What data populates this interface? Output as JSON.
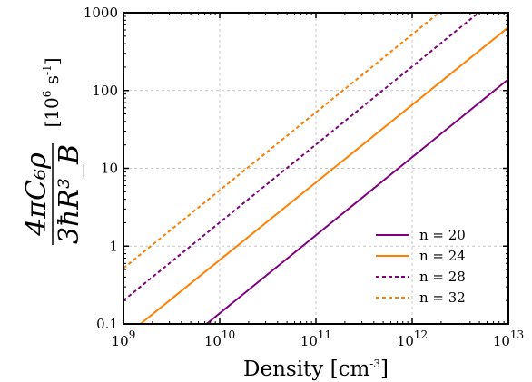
{
  "chart_data": {
    "type": "line",
    "xlabel": "Density [cm",
    "xlabel_sup": "-3",
    "xlabel_close": "]",
    "ylabel_numerator": "4πC₆ρ",
    "ylabel_denominator": "3ħR³_B",
    "ylabel_unit": "[10",
    "ylabel_unit_sup1": "6",
    "ylabel_unit_s": " s",
    "ylabel_unit_sup2": "-1",
    "ylabel_unit_close": "]",
    "xscale": "log",
    "yscale": "log",
    "xlim": [
      1000000000.0,
      10000000000000.0
    ],
    "ylim": [
      0.1,
      1000
    ],
    "grid": true,
    "legend_position": "lower-right",
    "x_ticks": [
      {
        "value": 1000000000.0,
        "base": "10",
        "exp": "9"
      },
      {
        "value": 10000000000.0,
        "base": "10",
        "exp": "10"
      },
      {
        "value": 100000000000.0,
        "base": "10",
        "exp": "11"
      },
      {
        "value": 1000000000000.0,
        "base": "10",
        "exp": "12"
      },
      {
        "value": 10000000000000.0,
        "base": "10",
        "exp": "13"
      }
    ],
    "y_ticks": [
      {
        "value": 0.1,
        "label": "0.1"
      },
      {
        "value": 1,
        "label": "1"
      },
      {
        "value": 10,
        "label": "10"
      },
      {
        "value": 100,
        "label": "100"
      },
      {
        "value": 1000,
        "label": "1000"
      }
    ],
    "series": [
      {
        "name": "n = 20",
        "color": "#800080",
        "dash": "solid",
        "x": [
          7300000000.0,
          10000000000000.0
        ],
        "y": [
          0.1,
          140
        ]
      },
      {
        "name": "n = 24",
        "color": "#ff8000",
        "dash": "solid",
        "x": [
          1500000000.0,
          10000000000000.0
        ],
        "y": [
          0.1,
          650
        ]
      },
      {
        "name": "n = 28",
        "color": "#800080",
        "dash": "dashed",
        "x": [
          1000000000.0,
          4900000000000.0
        ],
        "y": [
          0.2,
          1000
        ]
      },
      {
        "name": "n = 32",
        "color": "#ff8000",
        "dash": "dashed",
        "x": [
          1000000000.0,
          1900000000000.0
        ],
        "y": [
          0.52,
          1000
        ]
      }
    ]
  }
}
